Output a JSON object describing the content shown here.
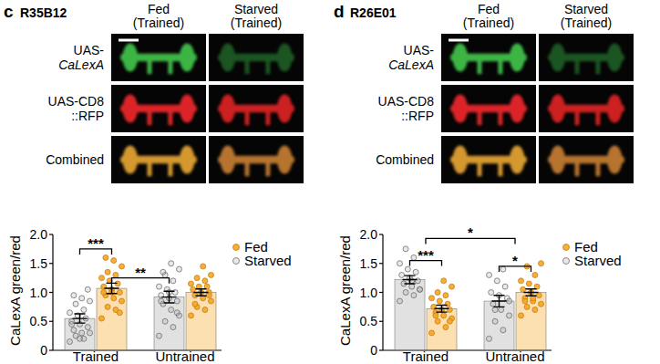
{
  "chart_data": [
    {
      "type": "bar",
      "panel": "c",
      "title": "R35B12",
      "columns": [
        [
          "Fed",
          "(Trained)"
        ],
        [
          "Starved",
          "(Trained)"
        ]
      ],
      "rows": [
        [
          "UAS-",
          "CaLexA"
        ],
        [
          "UAS-CD8",
          "::RFP"
        ],
        [
          "Combined"
        ]
      ],
      "y_label": "CaLexA green/red",
      "categories": [
        "Trained",
        "Untrained"
      ],
      "series": [
        {
          "name": "Starved",
          "color": "#a9a9a9",
          "values": [
            0.55,
            0.92
          ],
          "errors": [
            0.08,
            0.1
          ],
          "points": [
            [
              0.15,
              0.2,
              0.25,
              0.3,
              0.3,
              0.35,
              0.4,
              0.45,
              0.5,
              0.55,
              0.6,
              0.65,
              0.7,
              0.8,
              0.85,
              0.9,
              0.95,
              1.05,
              0.2,
              0.45
            ],
            [
              0.25,
              0.4,
              0.5,
              0.6,
              0.7,
              0.8,
              0.85,
              0.9,
              0.95,
              1.0,
              1.05,
              1.1,
              1.2,
              1.3,
              1.4,
              1.5,
              1.35,
              0.65,
              1.0,
              0.85
            ]
          ]
        },
        {
          "name": "Fed",
          "color": "#f5a623",
          "values": [
            1.07,
            1.0
          ],
          "errors": [
            0.09,
            0.06
          ],
          "points": [
            [
              0.55,
              0.7,
              0.75,
              0.85,
              0.9,
              0.95,
              1.0,
              1.05,
              1.1,
              1.15,
              1.2,
              1.25,
              1.3,
              1.35,
              1.45,
              1.55,
              1.6,
              0.65,
              1.0,
              1.0
            ],
            [
              0.6,
              0.7,
              0.75,
              0.85,
              0.9,
              0.95,
              1.0,
              1.0,
              1.05,
              1.1,
              1.1,
              1.15,
              1.2,
              1.25,
              1.3,
              1.45,
              0.8,
              0.95
            ]
          ]
        }
      ],
      "ylim": [
        0,
        2
      ],
      "yticks": [
        0,
        0.5,
        {
          "value": 1,
          "label": "1.0"
        },
        {
          "value": 1.5,
          "label": "1.5"
        },
        {
          "value": 2,
          "label": "2.0"
        }
      ],
      "legend": "upper right",
      "annotations": [
        {
          "text": "***",
          "y": 1.75,
          "from": [
            0,
            0
          ],
          "to": [
            0,
            1
          ]
        },
        {
          "text": "**",
          "y": 1.25,
          "from": [
            0,
            1
          ],
          "to": [
            1,
            0
          ]
        }
      ]
    },
    {
      "type": "bar",
      "panel": "d",
      "title": "R26E01",
      "columns": [
        [
          "Fed",
          "(Trained)"
        ],
        [
          "Starved",
          "(Trained)"
        ]
      ],
      "rows": [
        [
          "UAS-",
          "CaLexA"
        ],
        [
          "UAS-CD8",
          "::RFP"
        ],
        [
          "Combined"
        ]
      ],
      "y_label": "CaLexA green/red",
      "categories": [
        "Trained",
        "Untrained"
      ],
      "series": [
        {
          "name": "Starved",
          "color": "#a9a9a9",
          "values": [
            1.22,
            0.85
          ],
          "errors": [
            0.07,
            0.1
          ],
          "points": [
            [
              0.85,
              0.95,
              1.0,
              1.05,
              1.1,
              1.15,
              1.2,
              1.25,
              1.3,
              1.35,
              1.4,
              1.5,
              1.6,
              1.75,
              1.05,
              1.2
            ],
            [
              0.2,
              0.35,
              0.5,
              0.6,
              0.7,
              0.8,
              0.9,
              0.95,
              1.0,
              1.1,
              1.2,
              1.3,
              1.4,
              0.7,
              0.85
            ]
          ]
        },
        {
          "name": "Fed",
          "color": "#f5a623",
          "values": [
            0.72,
            1.0
          ],
          "errors": [
            0.06,
            0.06
          ],
          "points": [
            [
              0.3,
              0.4,
              0.5,
              0.55,
              0.6,
              0.65,
              0.7,
              0.7,
              0.75,
              0.8,
              0.85,
              0.9,
              0.95,
              1.0,
              1.1,
              1.2,
              0.6,
              0.5
            ],
            [
              0.6,
              0.7,
              0.75,
              0.8,
              0.85,
              0.9,
              0.95,
              1.0,
              1.05,
              1.1,
              1.15,
              1.2,
              1.3,
              1.45,
              1.5,
              0.9,
              0.85
            ]
          ]
        }
      ],
      "ylim": [
        0,
        2
      ],
      "yticks": [
        0,
        0.5,
        {
          "value": 1,
          "label": "1.0"
        },
        {
          "value": 1.5,
          "label": "1.5"
        },
        {
          "value": 2,
          "label": "2.0"
        }
      ],
      "legend": "upper right",
      "annotations": [
        {
          "text": "***",
          "y": 1.55,
          "from": [
            0,
            0
          ],
          "to": [
            0,
            1
          ]
        },
        {
          "text": "*",
          "y": 1.93,
          "from": [
            0
          ],
          "to": [
            1
          ]
        },
        {
          "text": "*",
          "y": 1.45,
          "from": [
            1,
            0
          ],
          "to": [
            1,
            1
          ]
        }
      ]
    }
  ]
}
